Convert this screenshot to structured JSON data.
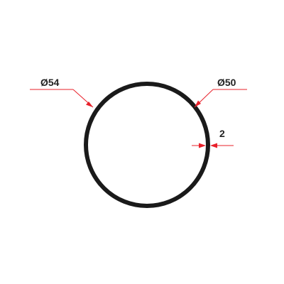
{
  "dimensions": {
    "outer_diameter": "Ø54",
    "inner_diameter": "Ø50",
    "wall_thickness": "2"
  },
  "colors": {
    "ring": "#1a1a1a",
    "dimension_lines": "#e8202a",
    "dimension_text": "#222222",
    "background": "#ffffff"
  }
}
